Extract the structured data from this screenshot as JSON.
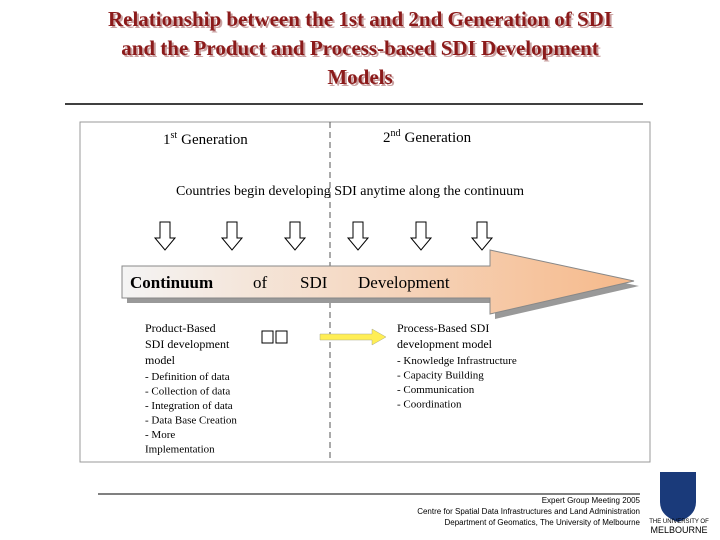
{
  "title": {
    "lines": [
      "Relationship between the 1st and 2nd Generation of SDI",
      "and the Product and Process-based SDI Development",
      "Models"
    ]
  },
  "first_generation": {
    "number": "1",
    "ordinal": "st",
    "label": "Generation"
  },
  "second_generation": {
    "number": "2",
    "ordinal": "nd",
    "label": "Generation"
  },
  "statement": "Countries begin developing SDI  anytime along the continuum",
  "continuum": [
    "Continuum",
    "of",
    "SDI",
    "Development"
  ],
  "product_model": {
    "heading": [
      "Product-Based",
      "SDI development",
      "model"
    ],
    "items": [
      "- Definition of data",
      "- Collection of data",
      "- Integration of data",
      "- Data Base Creation",
      "- More",
      "Implementation"
    ]
  },
  "process_model": {
    "heading": [
      "Process-Based SDI",
      "development model"
    ],
    "items": [
      "- Knowledge Infrastructure",
      "- Capacity Building",
      "- Communication",
      "- Coordination"
    ]
  },
  "footer": [
    "Expert Group Meeting 2005",
    "Centre for Spatial Data Infrastructures and Land Administration",
    "Department of Geomatics, The University of Melbourne"
  ],
  "logo": [
    "THE UNIVERSITY OF",
    "MELBOURNE"
  ]
}
